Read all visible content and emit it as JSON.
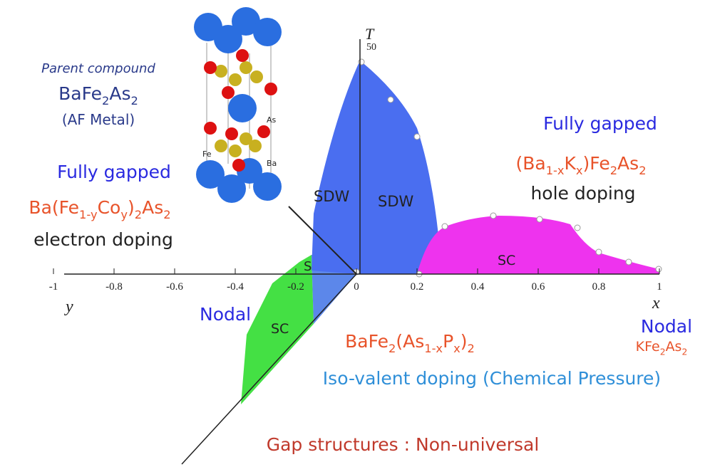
{
  "crystal": {
    "labels": [
      "Fe",
      "As",
      "Ba"
    ]
  },
  "parent": {
    "caption": "Parent compound",
    "formula": [
      "BaFe",
      "2",
      "As",
      "2"
    ],
    "note": "(AF Metal)"
  },
  "electron": {
    "heading": "Fully gapped",
    "formula": [
      "Ba(Fe",
      "1-y",
      "Co",
      "y",
      ")",
      "2",
      "As",
      "2"
    ],
    "note": "electron doping"
  },
  "hole": {
    "heading": "Fully gapped",
    "formula": [
      "(Ba",
      "1-x",
      "K",
      "x",
      ")Fe",
      "2",
      "As",
      "2"
    ],
    "note": "hole doping"
  },
  "isovalent": {
    "formula": [
      "BaFe",
      "2",
      "(As",
      "1-x",
      "P",
      "x",
      ")",
      "2"
    ],
    "note": "Iso-valent doping (Chemical Pressure)"
  },
  "end_member": {
    "heading": "Nodal",
    "formula": [
      "KFe",
      "2",
      "As",
      "2"
    ]
  },
  "nodal_left": "Nodal",
  "regions": {
    "sdw_back": "SDW",
    "sdw_front": "SDW",
    "sc_hole": "SC",
    "sc_electron": "SC",
    "sc_small": "S"
  },
  "axes": {
    "x_label": "x",
    "y_label": "y",
    "t_label": "T",
    "t_tick": "50",
    "ticks": [
      -1,
      -0.8,
      -0.6,
      -0.4,
      -0.2,
      0,
      0.2,
      0.4,
      0.6,
      0.8,
      1
    ]
  },
  "footer": "Gap structures : Non-universal"
}
